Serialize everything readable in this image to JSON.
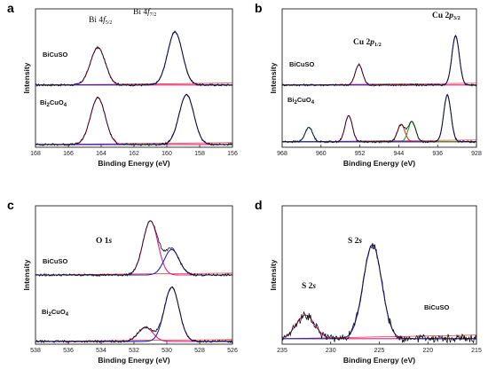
{
  "chart_data": [
    {
      "panel": "a",
      "type": "line",
      "xlabel": "Binding Energy (eV)",
      "ylabel": "Intensity",
      "xlim": [
        168,
        156
      ],
      "x_ticks": [
        "168",
        "166",
        "164",
        "162",
        "160",
        "158",
        "156"
      ],
      "annotations": [
        {
          "main": "Bi 4",
          "italic": "f",
          "sub": "5/2",
          "x": 164.2
        },
        {
          "main": "Bi 4",
          "italic": "f",
          "sub": "7/2",
          "x": 159.5
        }
      ],
      "samples": [
        {
          "label": "BiCuSO",
          "peaks": [
            {
              "x": 164.2,
              "height": 0.6,
              "color": "#e0208a"
            },
            {
              "x": 159.5,
              "height": 0.85,
              "color": "#2222cc"
            }
          ]
        },
        {
          "label_main": "Bi",
          "label_sub": "2",
          "label_rest": "CuO",
          "label_sub2": "4",
          "peaks": [
            {
              "x": 164.2,
              "height": 0.75,
              "color": "#e0208a"
            },
            {
              "x": 158.8,
              "height": 0.8,
              "color": "#2222cc"
            }
          ]
        }
      ]
    },
    {
      "panel": "b",
      "type": "line",
      "xlabel": "Binding Energy (eV)",
      "ylabel": "Intensity",
      "xlim": [
        968,
        928
      ],
      "x_ticks": [
        "968",
        "960",
        "952",
        "944",
        "936",
        "928"
      ],
      "annotations": [
        {
          "main": "Cu 2",
          "italic": "p",
          "sub": "3/2",
          "x": 932.3
        },
        {
          "main": "Cu 2",
          "italic": "p",
          "sub": "1/2",
          "x": 952.2
        }
      ],
      "samples": [
        {
          "label": "BiCuSO",
          "peaks": [
            {
              "x": 952.2,
              "height": 0.35,
              "color": "#e0208a"
            },
            {
              "x": 932.3,
              "height": 0.85,
              "color": "#2222cc"
            }
          ]
        },
        {
          "label_main": "Bi",
          "label_sub": "2",
          "label_rest": "CuO",
          "label_sub2": "4",
          "peaks": [
            {
              "x": 962.5,
              "height": 0.25,
              "color": "#1a9aa0"
            },
            {
              "x": 954.3,
              "height": 0.45,
              "color": "#e0208a"
            },
            {
              "x": 943.5,
              "height": 0.3,
              "color": "#ee2222"
            },
            {
              "x": 941.3,
              "height": 0.35,
              "color": "#22aa22"
            },
            {
              "x": 934.0,
              "height": 0.8,
              "color": "#2222cc"
            }
          ]
        }
      ]
    },
    {
      "panel": "c",
      "type": "line",
      "xlabel": "Binding Energy (eV)",
      "ylabel": "Intensity",
      "xlim": [
        538,
        526
      ],
      "x_ticks": [
        "538",
        "536",
        "534",
        "532",
        "530",
        "528",
        "526"
      ],
      "annotations": [
        {
          "main": "O 1",
          "italic": "s",
          "sub": "",
          "x": 531.5
        }
      ],
      "samples": [
        {
          "label": "BiCuSO",
          "peaks": [
            {
              "x": 531.0,
              "height": 0.85,
              "color": "#e0208a"
            },
            {
              "x": 529.7,
              "height": 0.4,
              "color": "#2222cc"
            }
          ]
        },
        {
          "label_main": "Bi",
          "label_sub": "2",
          "label_rest": "CuO",
          "label_sub2": "4",
          "peaks": [
            {
              "x": 531.3,
              "height": 0.22,
              "color": "#e0208a"
            },
            {
              "x": 529.7,
              "height": 0.85,
              "color": "#2222cc"
            }
          ]
        }
      ]
    },
    {
      "panel": "d",
      "type": "line",
      "xlabel": "Binding Energy (eV)",
      "ylabel": "Intensity",
      "xlim": [
        235,
        215
      ],
      "x_ticks": [
        "235",
        "230",
        "225",
        "220",
        "215"
      ],
      "annotations": [
        {
          "main": "S 2",
          "italic": "s",
          "sub": "",
          "x": 225.7
        },
        {
          "main": "S 2",
          "italic": "s",
          "sub": "",
          "x": 232.6
        }
      ],
      "samples": [
        {
          "label": "BiCuSO",
          "peaks": [
            {
              "x": 232.6,
              "height": 0.2,
              "color": "#e0208a"
            },
            {
              "x": 225.7,
              "height": 0.8,
              "color": "#2222cc"
            }
          ]
        }
      ]
    }
  ],
  "panel_letters": [
    "a",
    "b",
    "c",
    "d"
  ]
}
